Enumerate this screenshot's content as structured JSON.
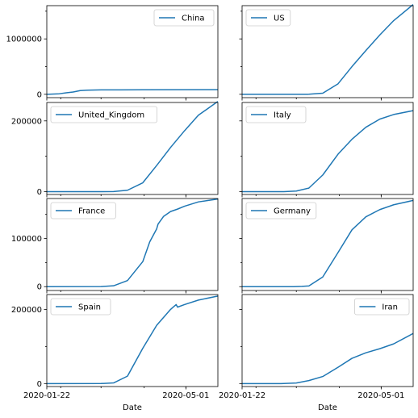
{
  "chart_data": {
    "type": "line",
    "layout": "grid-4x2",
    "sharex": true,
    "sharey_rows": true,
    "xlabel": "Date",
    "x_start": "2020-01-22",
    "x_end": "2020-05-24",
    "x_major_ticks": [
      "2020-01-22",
      "2020-05-01"
    ],
    "line_color": "#1f77b4",
    "rows": [
      {
        "ylim": [
          -60000,
          1600000
        ],
        "yticks": [
          0,
          1000000
        ],
        "ytick_labels": [
          "0",
          "1000000"
        ],
        "panels": [
          {
            "name": "China",
            "legend": "top-right",
            "x": [
              "2020-01-22",
              "2020-01-31",
              "2020-02-05",
              "2020-02-10",
              "2020-02-15",
              "2020-02-20",
              "2020-03-01",
              "2020-03-15",
              "2020-04-01",
              "2020-05-24"
            ],
            "values": [
              550,
              10000,
              28000,
              42000,
              68000,
              75000,
              80000,
              81000,
              82500,
              84000
            ]
          },
          {
            "name": "US",
            "legend": "top-left",
            "x": [
              "2020-01-22",
              "2020-03-01",
              "2020-03-10",
              "2020-03-20",
              "2020-03-31",
              "2020-04-10",
              "2020-04-20",
              "2020-04-30",
              "2020-05-10",
              "2020-05-24"
            ],
            "values": [
              0,
              100,
              1000,
              20000,
              190000,
              500000,
              790000,
              1070000,
              1330000,
              1620000
            ]
          }
        ]
      },
      {
        "ylim": [
          -8000,
          252000
        ],
        "yticks": [
          0,
          200000
        ],
        "ytick_labels": [
          "0",
          "200000"
        ],
        "panels": [
          {
            "name": "United_Kingdom",
            "legend": "top-left",
            "x": [
              "2020-01-22",
              "2020-03-01",
              "2020-03-10",
              "2020-03-20",
              "2020-03-31",
              "2020-04-10",
              "2020-04-20",
              "2020-04-30",
              "2020-05-10",
              "2020-05-24"
            ],
            "values": [
              0,
              30,
              400,
              4000,
              25000,
              74000,
              125000,
              172000,
              216000,
              255000
            ]
          },
          {
            "name": "Italy",
            "legend": "top-left",
            "x": [
              "2020-01-22",
              "2020-02-21",
              "2020-03-01",
              "2020-03-10",
              "2020-03-20",
              "2020-03-31",
              "2020-04-10",
              "2020-04-20",
              "2020-04-30",
              "2020-05-10",
              "2020-05-24"
            ],
            "values": [
              0,
              20,
              1700,
              10000,
              47000,
              106000,
              148000,
              182000,
              205000,
              218000,
              229000
            ]
          }
        ]
      },
      {
        "ylim": [
          -8000,
          183000
        ],
        "yticks": [
          0,
          100000
        ],
        "ytick_labels": [
          "0",
          "100000"
        ],
        "panels": [
          {
            "name": "France",
            "legend": "top-left",
            "x": [
              "2020-01-22",
              "2020-03-01",
              "2020-03-10",
              "2020-03-20",
              "2020-03-31",
              "2020-04-05",
              "2020-04-10",
              "2020-04-11",
              "2020-04-15",
              "2020-04-20",
              "2020-04-25",
              "2020-04-30",
              "2020-05-10",
              "2020-05-24"
            ],
            "values": [
              0,
              130,
              1800,
              12600,
              52000,
              93000,
              120000,
              130000,
              146000,
              156000,
              161000,
              167000,
              176000,
              182000
            ]
          },
          {
            "name": "Germany",
            "legend": "top-left",
            "x": [
              "2020-01-22",
              "2020-02-28",
              "2020-03-05",
              "2020-03-10",
              "2020-03-20",
              "2020-03-31",
              "2020-04-10",
              "2020-04-20",
              "2020-04-30",
              "2020-05-10",
              "2020-05-24"
            ],
            "values": [
              0,
              50,
              500,
              1500,
              20000,
              71000,
              118000,
              145000,
              160000,
              170000,
              179000
            ]
          }
        ]
      },
      {
        "ylim": [
          -8000,
          240000
        ],
        "yticks": [
          0,
          200000
        ],
        "ytick_labels": [
          "0",
          "200000"
        ],
        "panels": [
          {
            "name": "Spain",
            "legend": "top-left",
            "x": [
              "2020-01-22",
              "2020-03-01",
              "2020-03-10",
              "2020-03-20",
              "2020-03-31",
              "2020-04-10",
              "2020-04-20",
              "2020-04-24",
              "2020-04-25",
              "2020-04-30",
              "2020-05-10",
              "2020-05-24"
            ],
            "values": [
              0,
              80,
              1700,
              20000,
              95000,
              157000,
              200000,
              213000,
              206000,
              213000,
              225000,
              236000
            ]
          },
          {
            "name": "Iran",
            "legend": "top-right",
            "x": [
              "2020-01-22",
              "2020-02-19",
              "2020-03-01",
              "2020-03-10",
              "2020-03-20",
              "2020-03-31",
              "2020-04-10",
              "2020-04-20",
              "2020-04-30",
              "2020-05-10",
              "2020-05-24"
            ],
            "values": [
              0,
              2,
              1500,
              8000,
              19000,
              44000,
              68000,
              83000,
              94000,
              107000,
              135000
            ]
          }
        ]
      }
    ]
  }
}
